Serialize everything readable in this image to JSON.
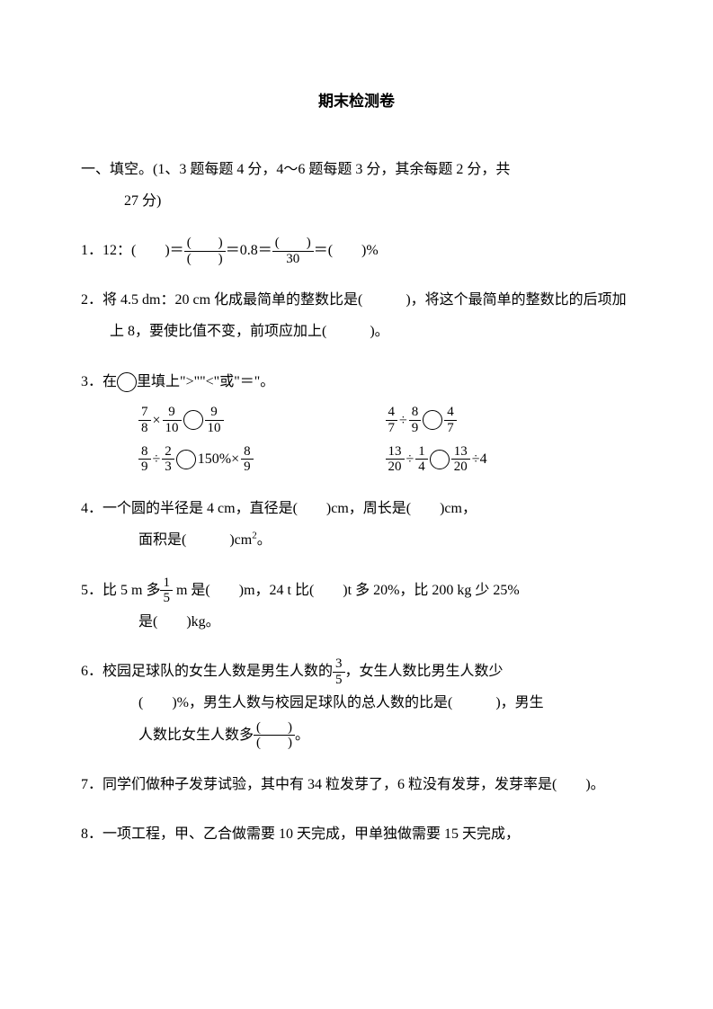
{
  "title": "期末检测卷",
  "section1": {
    "header_line1": "一、填空。(1、3 题每题 4 分，4～6 题每题 3 分，其余每题 2 分，共",
    "header_line2": "27 分)"
  },
  "q1": {
    "label": "1．",
    "text1": "12：(　　)＝",
    "frac1_num": "(　　)",
    "frac1_den": "(　　)",
    "text2": "＝0.8＝",
    "frac2_num": "(　　)",
    "frac2_den": "30",
    "text3": "＝(　　)%"
  },
  "q2": {
    "label": "2．",
    "text": "将 4.5 dm：20 cm 化成最简单的整数比是(　　　)，将这个最简单的整数比的后项加上 8，要使比值不变，前项应加上(　　　)。"
  },
  "q3": {
    "label": "3．",
    "intro": "在",
    "intro2": "里填上\">\"\"<\"或\"＝\"。",
    "r1c1_a_num": "7",
    "r1c1_a_den": "8",
    "r1c1_op1": "×",
    "r1c1_b_num": "9",
    "r1c1_b_den": "10",
    "r1c1_c_num": "9",
    "r1c1_c_den": "10",
    "r1c2_a_num": "4",
    "r1c2_a_den": "7",
    "r1c2_op1": "÷",
    "r1c2_b_num": "8",
    "r1c2_b_den": "9",
    "r1c2_c_num": "4",
    "r1c2_c_den": "7",
    "r2c1_a_num": "8",
    "r2c1_a_den": "9",
    "r2c1_op1": "÷",
    "r2c1_b_num": "2",
    "r2c1_b_den": "3",
    "r2c1_mid": "150%×",
    "r2c1_c_num": "8",
    "r2c1_c_den": "9",
    "r2c2_a_num": "13",
    "r2c2_a_den": "20",
    "r2c2_op1": "÷",
    "r2c2_b_num": "1",
    "r2c2_b_den": "4",
    "r2c2_c_num": "13",
    "r2c2_c_den": "20",
    "r2c2_tail": "÷4"
  },
  "q4": {
    "label": "4．",
    "line1": "一个圆的半径是 4 cm，直径是(　　)cm，周长是(　　)cm，",
    "line2": "面积是(　　　)cm",
    "sup": "2",
    "tail": "。"
  },
  "q5": {
    "label": "5．",
    "pre": "比 5 m 多",
    "frac_num": "1",
    "frac_den": "5",
    "mid": " m 是(　　)m，24 t 比(　　)t 多 20%，比 200 kg 少 25%",
    "line2": "是(　　)kg。"
  },
  "q6": {
    "label": "6．",
    "pre": "校园足球队的女生人数是男生人数的",
    "frac1_num": "3",
    "frac1_den": "5",
    "mid1": "，女生人数比男生人数少",
    "line2a": "(　　)%，男生人数与校园足球队的总人数的比是(　　　)，男生",
    "line3a": "人数比女生人数多",
    "frac2_num": "(　　)",
    "frac2_den": "(　　)",
    "tail": "。"
  },
  "q7": {
    "label": "7．",
    "text": "同学们做种子发芽试验，其中有 34 粒发芽了，6 粒没有发芽，发芽率是(　　)。"
  },
  "q8": {
    "label": "8．",
    "text": "一项工程，甲、乙合做需要 10 天完成，甲单独做需要 15 天完成，"
  }
}
